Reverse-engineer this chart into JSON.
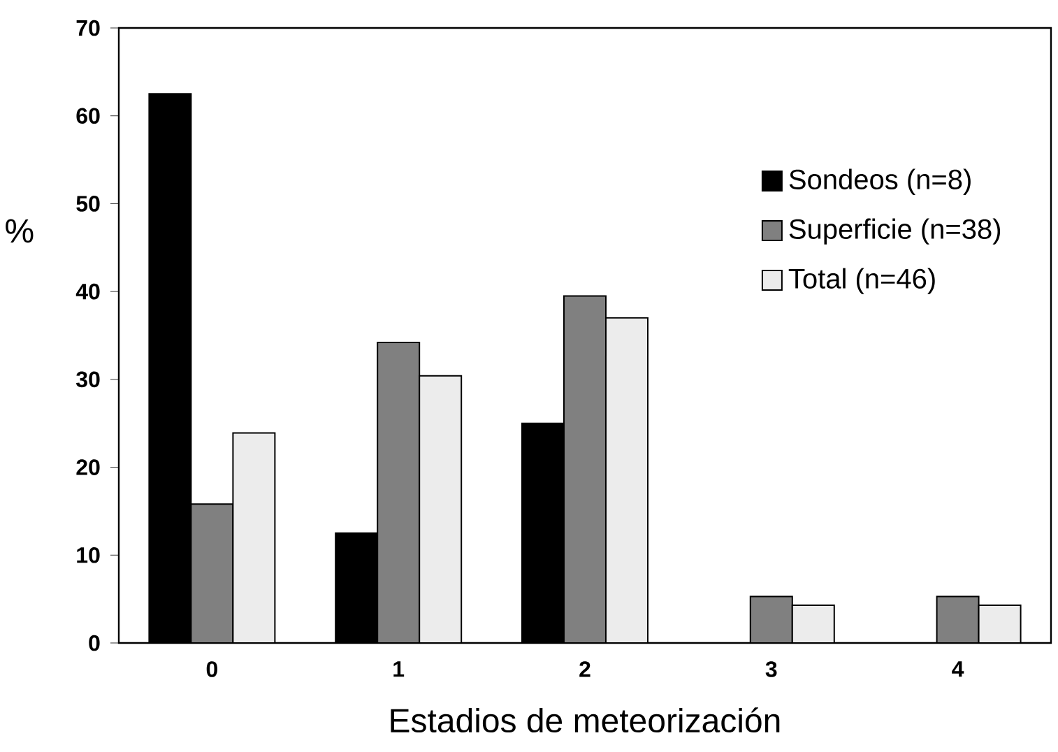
{
  "chart_data": {
    "type": "bar",
    "xlabel": "Estadios de meteorización",
    "ylabel": "%",
    "categories": [
      "0",
      "1",
      "2",
      "3",
      "4"
    ],
    "series": [
      {
        "name": "Sondeos  (n=8)",
        "color": "#000000",
        "values": [
          62.5,
          12.5,
          25,
          0,
          0
        ]
      },
      {
        "name": "Superficie (n=38)",
        "color": "#808080",
        "values": [
          15.8,
          34.2,
          39.5,
          5.3,
          5.3
        ]
      },
      {
        "name": "Total  (n=46)",
        "color": "#ececec",
        "values": [
          23.9,
          30.4,
          37.0,
          4.3,
          4.3
        ]
      }
    ],
    "ylim": [
      0,
      70
    ],
    "yticks": [
      0,
      10,
      20,
      30,
      40,
      50,
      60,
      70
    ],
    "grid": false,
    "legend": "top right"
  }
}
